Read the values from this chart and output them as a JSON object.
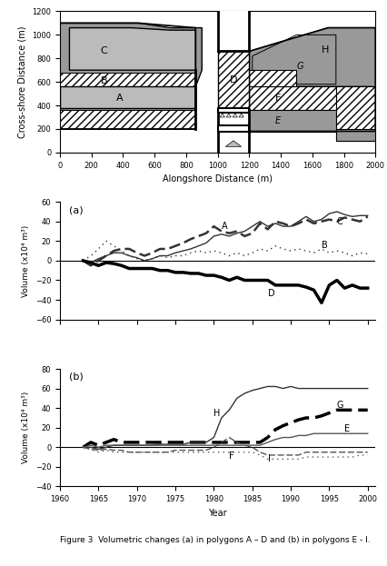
{
  "map": {
    "xlim": [
      0,
      2000
    ],
    "ylim": [
      0,
      1200
    ],
    "xlabel": "Alongshore Distance (m)",
    "ylabel": "Cross-shore Distance (m)",
    "xticks": [
      0,
      200,
      400,
      600,
      800,
      1000,
      1200,
      1400,
      1600,
      1800,
      2000
    ],
    "yticks": [
      0,
      200,
      400,
      600,
      800,
      1000,
      1200
    ]
  },
  "plot_a": {
    "label": "(a)",
    "ylabel": "Volume (x10⁴ m³)",
    "ylim": [
      -60,
      60
    ],
    "yticks": [
      -60,
      -40,
      -20,
      0,
      20,
      40,
      60
    ],
    "series": {
      "A": {
        "years": [
          1963,
          1964,
          1965,
          1966,
          1967,
          1968,
          1969,
          1970,
          1971,
          1972,
          1973,
          1974,
          1975,
          1976,
          1977,
          1978,
          1979,
          1980,
          1981,
          1982,
          1983,
          1984,
          1985,
          1986,
          1987,
          1988,
          1989,
          1990,
          1991,
          1992,
          1993,
          1994,
          1995,
          1996,
          1997,
          1998,
          1999,
          2000
        ],
        "values": [
          0,
          -2,
          2,
          5,
          8,
          8,
          5,
          3,
          0,
          2,
          5,
          5,
          8,
          10,
          12,
          15,
          18,
          25,
          27,
          25,
          28,
          30,
          35,
          40,
          35,
          38,
          35,
          35,
          40,
          45,
          40,
          42,
          48,
          50,
          47,
          45,
          46,
          46
        ],
        "color": "#333333",
        "linewidth": 1.0,
        "linestyle": "-"
      },
      "B": {
        "years": [
          1963,
          1964,
          1965,
          1966,
          1967,
          1968,
          1969,
          1970,
          1971,
          1972,
          1973,
          1974,
          1975,
          1976,
          1977,
          1978,
          1979,
          1980,
          1981,
          1982,
          1983,
          1984,
          1985,
          1986,
          1987,
          1988,
          1989,
          1990,
          1991,
          1992,
          1993,
          1994,
          1995,
          1996,
          1997,
          1998,
          1999,
          2000
        ],
        "values": [
          0,
          5,
          12,
          20,
          15,
          10,
          5,
          2,
          0,
          2,
          5,
          3,
          5,
          5,
          8,
          10,
          8,
          10,
          8,
          5,
          8,
          5,
          8,
          12,
          10,
          15,
          12,
          10,
          12,
          10,
          8,
          12,
          8,
          10,
          8,
          5,
          8,
          7
        ],
        "color": "#333333",
        "linewidth": 1.0,
        "linestyle": "dotted"
      },
      "C": {
        "years": [
          1963,
          1964,
          1965,
          1966,
          1967,
          1968,
          1969,
          1970,
          1971,
          1972,
          1973,
          1974,
          1975,
          1976,
          1977,
          1978,
          1979,
          1980,
          1981,
          1982,
          1983,
          1984,
          1985,
          1986,
          1987,
          1988,
          1989,
          1990,
          1991,
          1992,
          1993,
          1994,
          1995,
          1996,
          1997,
          1998,
          1999,
          2000
        ],
        "values": [
          0,
          -5,
          0,
          5,
          10,
          12,
          12,
          8,
          5,
          8,
          12,
          12,
          15,
          18,
          22,
          25,
          28,
          35,
          30,
          28,
          30,
          25,
          28,
          38,
          32,
          40,
          38,
          35,
          38,
          42,
          38,
          40,
          42,
          40,
          44,
          42,
          40,
          45
        ],
        "color": "#333333",
        "linewidth": 1.8,
        "linestyle": "dashed"
      },
      "D": {
        "years": [
          1963,
          1964,
          1965,
          1966,
          1967,
          1968,
          1969,
          1970,
          1971,
          1972,
          1973,
          1974,
          1975,
          1976,
          1977,
          1978,
          1979,
          1980,
          1981,
          1982,
          1983,
          1984,
          1985,
          1986,
          1987,
          1988,
          1989,
          1990,
          1991,
          1992,
          1993,
          1994,
          1995,
          1996,
          1997,
          1998,
          1999,
          2000
        ],
        "values": [
          0,
          -2,
          -5,
          -2,
          -3,
          -5,
          -8,
          -8,
          -8,
          -8,
          -10,
          -10,
          -12,
          -12,
          -13,
          -13,
          -15,
          -15,
          -17,
          -20,
          -17,
          -20,
          -20,
          -20,
          -20,
          -25,
          -25,
          -25,
          -25,
          -27,
          -30,
          -43,
          -25,
          -20,
          -28,
          -25,
          -28,
          -28
        ],
        "color": "#000000",
        "linewidth": 2.5,
        "linestyle": "-"
      }
    }
  },
  "plot_b": {
    "label": "(b)",
    "ylabel": "Volume (x10⁴ m³)",
    "ylim": [
      -40,
      80
    ],
    "yticks": [
      -40,
      -20,
      0,
      20,
      40,
      60,
      80
    ],
    "xlabel": "Year",
    "xticks": [
      1960,
      1965,
      1970,
      1975,
      1980,
      1985,
      1990,
      1995,
      2000
    ],
    "series": {
      "H": {
        "years": [
          1963,
          1964,
          1965,
          1966,
          1967,
          1968,
          1969,
          1970,
          1971,
          1972,
          1973,
          1974,
          1975,
          1976,
          1977,
          1978,
          1979,
          1980,
          1981,
          1982,
          1983,
          1984,
          1985,
          1986,
          1987,
          1988,
          1989,
          1990,
          1991,
          1992,
          1993,
          1994,
          1995,
          1996,
          1997,
          1998,
          1999,
          2000
        ],
        "values": [
          0,
          0,
          -2,
          0,
          2,
          2,
          2,
          2,
          2,
          2,
          3,
          3,
          3,
          3,
          5,
          5,
          5,
          10,
          30,
          38,
          50,
          55,
          58,
          60,
          62,
          62,
          60,
          62,
          60,
          60,
          60,
          60,
          60,
          60,
          60,
          60,
          60,
          60
        ],
        "color": "#333333",
        "linewidth": 1.0,
        "linestyle": "-"
      },
      "G": {
        "years": [
          1963,
          1964,
          1965,
          1966,
          1967,
          1968,
          1969,
          1970,
          1971,
          1972,
          1973,
          1974,
          1975,
          1976,
          1977,
          1978,
          1979,
          1980,
          1981,
          1982,
          1983,
          1984,
          1985,
          1986,
          1987,
          1988,
          1989,
          1990,
          1991,
          1992,
          1993,
          1994,
          1995,
          1996,
          1997,
          1998,
          1999,
          2000
        ],
        "values": [
          0,
          5,
          2,
          5,
          8,
          5,
          5,
          5,
          5,
          5,
          5,
          5,
          5,
          5,
          5,
          5,
          5,
          5,
          5,
          5,
          5,
          5,
          5,
          5,
          10,
          18,
          22,
          25,
          28,
          30,
          30,
          32,
          35,
          38,
          38,
          38,
          38,
          38
        ],
        "color": "#000000",
        "linewidth": 2.5,
        "linestyle": "dashed"
      },
      "E": {
        "years": [
          1963,
          1964,
          1965,
          1966,
          1967,
          1968,
          1969,
          1970,
          1971,
          1972,
          1973,
          1974,
          1975,
          1976,
          1977,
          1978,
          1979,
          1980,
          1981,
          1982,
          1983,
          1984,
          1985,
          1986,
          1987,
          1988,
          1989,
          1990,
          1991,
          1992,
          1993,
          1994,
          1995,
          1996,
          1997,
          1998,
          1999,
          2000
        ],
        "values": [
          0,
          2,
          0,
          2,
          2,
          2,
          2,
          2,
          2,
          2,
          2,
          2,
          2,
          2,
          2,
          2,
          2,
          2,
          2,
          2,
          2,
          2,
          2,
          2,
          5,
          8,
          10,
          10,
          12,
          12,
          14,
          14,
          14,
          14,
          14,
          14,
          14,
          14
        ],
        "color": "#555555",
        "linewidth": 1.0,
        "linestyle": "-"
      },
      "F": {
        "years": [
          1963,
          1964,
          1965,
          1966,
          1967,
          1968,
          1969,
          1970,
          1971,
          1972,
          1973,
          1974,
          1975,
          1976,
          1977,
          1978,
          1979,
          1980,
          1981,
          1982,
          1983,
          1984,
          1985,
          1986,
          1987,
          1988,
          1989,
          1990,
          1991,
          1992,
          1993,
          1994,
          1995,
          1996,
          1997,
          1998,
          1999,
          2000
        ],
        "values": [
          0,
          -2,
          -3,
          -2,
          -3,
          -3,
          -5,
          -5,
          -5,
          -5,
          -5,
          -5,
          -3,
          -3,
          -3,
          -3,
          -3,
          0,
          5,
          10,
          5,
          2,
          0,
          -5,
          -8,
          -8,
          -8,
          -8,
          -8,
          -5,
          -5,
          -5,
          -5,
          -5,
          -5,
          -5,
          -5,
          -5
        ],
        "color": "#555555",
        "linewidth": 1.0,
        "linestyle": "dashed"
      },
      "I": {
        "years": [
          1963,
          1964,
          1965,
          1966,
          1967,
          1968,
          1969,
          1970,
          1971,
          1972,
          1973,
          1974,
          1975,
          1976,
          1977,
          1978,
          1979,
          1980,
          1981,
          1982,
          1983,
          1984,
          1985,
          1986,
          1987,
          1988,
          1989,
          1990,
          1991,
          1992,
          1993,
          1994,
          1995,
          1996,
          1997,
          1998,
          1999,
          2000
        ],
        "values": [
          0,
          -2,
          -5,
          -3,
          -5,
          -5,
          -5,
          -5,
          -5,
          -5,
          -5,
          -5,
          -5,
          -5,
          -5,
          -5,
          -5,
          -5,
          -5,
          -5,
          -5,
          -5,
          -5,
          -8,
          -12,
          -12,
          -12,
          -12,
          -12,
          -10,
          -10,
          -10,
          -10,
          -10,
          -10,
          -10,
          -8,
          -8
        ],
        "color": "#555555",
        "linewidth": 1.0,
        "linestyle": "dotted"
      }
    }
  },
  "caption": "Figure 3  Volumetric changes (a) in polygons A – D and (b) in polygons E - I."
}
